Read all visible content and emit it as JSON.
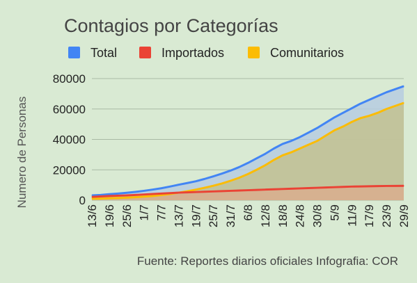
{
  "chart_data": {
    "type": "area",
    "title": "Contagios por Categorías",
    "xlabel": "",
    "ylabel": "Numero de Personas",
    "ylim": [
      0,
      80000
    ],
    "yticks": [
      "0",
      "20000",
      "40000",
      "60000",
      "80000"
    ],
    "x_tick_labels": [
      "13/6",
      "19/6",
      "25/6",
      "1/7",
      "7/7",
      "13/7",
      "19/7",
      "25/7",
      "31/7",
      "6/8",
      "12/8",
      "18/8",
      "24/8",
      "30/8",
      "5/9",
      "11/9",
      "17/9",
      "23/9",
      "29/9"
    ],
    "grid": true,
    "legend_position": "top",
    "x": [
      "13/6",
      "16/6",
      "19/6",
      "22/6",
      "25/6",
      "28/6",
      "1/7",
      "4/7",
      "7/7",
      "10/7",
      "13/7",
      "16/7",
      "19/7",
      "22/7",
      "25/7",
      "28/7",
      "31/7",
      "3/8",
      "6/8",
      "9/8",
      "12/8",
      "15/8",
      "18/8",
      "21/8",
      "24/8",
      "27/8",
      "30/8",
      "2/9",
      "5/9",
      "8/9",
      "11/9",
      "14/9",
      "17/9",
      "20/9",
      "23/9",
      "26/9",
      "29/9"
    ],
    "series": [
      {
        "name": "Total",
        "color": "#4285f4",
        "values": [
          3200,
          3500,
          4000,
          4400,
          4900,
          5500,
          6200,
          7000,
          7900,
          9000,
          10200,
          11300,
          12500,
          14000,
          15700,
          17500,
          19500,
          21800,
          24500,
          27500,
          30500,
          34000,
          37000,
          39000,
          41500,
          44500,
          47500,
          51000,
          54500,
          57500,
          60500,
          63500,
          66000,
          68500,
          71000,
          73000,
          75000
        ]
      },
      {
        "name": "Importados",
        "color": "#ea4335",
        "values": [
          2200,
          2500,
          2800,
          3000,
          3200,
          3500,
          3800,
          4100,
          4400,
          4700,
          5000,
          5200,
          5400,
          5600,
          5800,
          6000,
          6200,
          6400,
          6600,
          6800,
          7000,
          7200,
          7400,
          7600,
          7800,
          8000,
          8200,
          8400,
          8600,
          8800,
          9000,
          9100,
          9200,
          9300,
          9400,
          9450,
          9500
        ]
      },
      {
        "name": "Comunitarios",
        "color": "#fbbc04",
        "values": [
          1000,
          1100,
          1300,
          1500,
          1700,
          2000,
          2400,
          2800,
          3400,
          4100,
          5000,
          5900,
          7000,
          8200,
          9500,
          11000,
          12800,
          14800,
          17200,
          20000,
          23000,
          26500,
          29500,
          31500,
          34000,
          36500,
          39000,
          42500,
          46000,
          48500,
          51500,
          54000,
          55500,
          57500,
          60000,
          62000,
          64000
        ]
      }
    ]
  },
  "source_text": "Fuente: Reportes diarios oficiales  Infografia: COR"
}
